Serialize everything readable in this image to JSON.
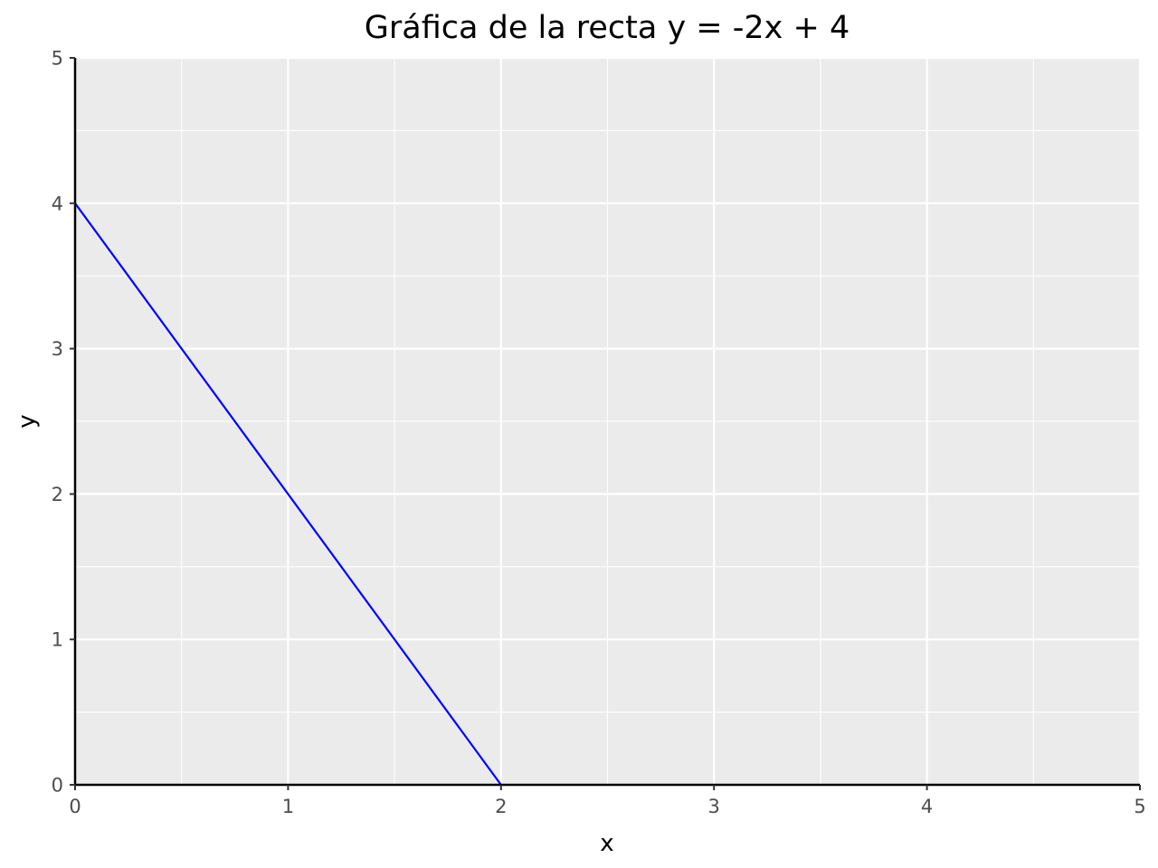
{
  "chart_data": {
    "type": "line",
    "title": "Gráfica de la recta y = -2x + 4",
    "xlabel": "x",
    "ylabel": "y",
    "xlim": [
      0,
      5
    ],
    "ylim": [
      0,
      5
    ],
    "x_ticks": [
      "0",
      "1",
      "2",
      "3",
      "4",
      "5"
    ],
    "y_ticks": [
      "0",
      "1",
      "2",
      "3",
      "4",
      "5"
    ],
    "grid": true,
    "series": [
      {
        "x": [
          0,
          2
        ],
        "y": [
          4,
          0
        ],
        "color": "#0000ff"
      }
    ],
    "panel_background": "#ebebeb",
    "grid_color": "#ffffff",
    "axis_line_color": "#000000"
  }
}
